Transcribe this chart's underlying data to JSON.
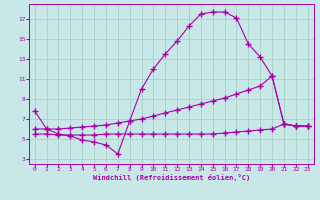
{
  "bg_color": "#c8e8e8",
  "line_color": "#aa00aa",
  "grid_color": "#a0ccbb",
  "xlabel": "Windchill (Refroidissement éolien,°C)",
  "xlim": [
    -0.5,
    23.5
  ],
  "ylim": [
    2.5,
    18.5
  ],
  "xticks": [
    0,
    1,
    2,
    3,
    4,
    5,
    6,
    7,
    8,
    9,
    10,
    11,
    12,
    13,
    14,
    15,
    16,
    17,
    18,
    19,
    20,
    21,
    22,
    23
  ],
  "yticks": [
    3,
    5,
    7,
    9,
    11,
    13,
    15,
    17
  ],
  "line1_x": [
    0,
    1,
    2,
    3,
    4,
    5,
    6,
    7,
    8,
    9,
    10,
    11,
    12,
    13,
    14,
    15,
    16,
    17,
    18,
    19,
    20,
    21,
    22,
    23
  ],
  "line1_y": [
    7.8,
    6.0,
    5.5,
    5.3,
    4.9,
    4.7,
    4.4,
    3.5,
    6.8,
    10.0,
    12.0,
    13.5,
    14.8,
    16.3,
    17.5,
    17.7,
    17.7,
    17.1,
    14.5,
    13.2,
    11.3,
    6.5,
    6.3,
    6.3
  ],
  "line2_x": [
    0,
    1,
    2,
    3,
    4,
    5,
    6,
    7,
    8,
    9,
    10,
    11,
    12,
    13,
    14,
    15,
    16,
    17,
    18,
    19,
    20,
    21,
    22,
    23
  ],
  "line2_y": [
    6.0,
    6.0,
    6.0,
    6.1,
    6.2,
    6.3,
    6.4,
    6.6,
    6.8,
    7.0,
    7.3,
    7.6,
    7.9,
    8.2,
    8.5,
    8.8,
    9.1,
    9.5,
    9.9,
    10.3,
    11.3,
    6.5,
    6.3,
    6.3
  ],
  "line3_x": [
    0,
    1,
    2,
    3,
    4,
    5,
    6,
    7,
    8,
    9,
    10,
    11,
    12,
    13,
    14,
    15,
    16,
    17,
    18,
    19,
    20,
    21,
    22,
    23
  ],
  "line3_y": [
    5.5,
    5.5,
    5.4,
    5.4,
    5.4,
    5.4,
    5.5,
    5.5,
    5.5,
    5.5,
    5.5,
    5.5,
    5.5,
    5.5,
    5.5,
    5.5,
    5.6,
    5.7,
    5.8,
    5.9,
    6.0,
    6.5,
    6.3,
    6.3
  ]
}
